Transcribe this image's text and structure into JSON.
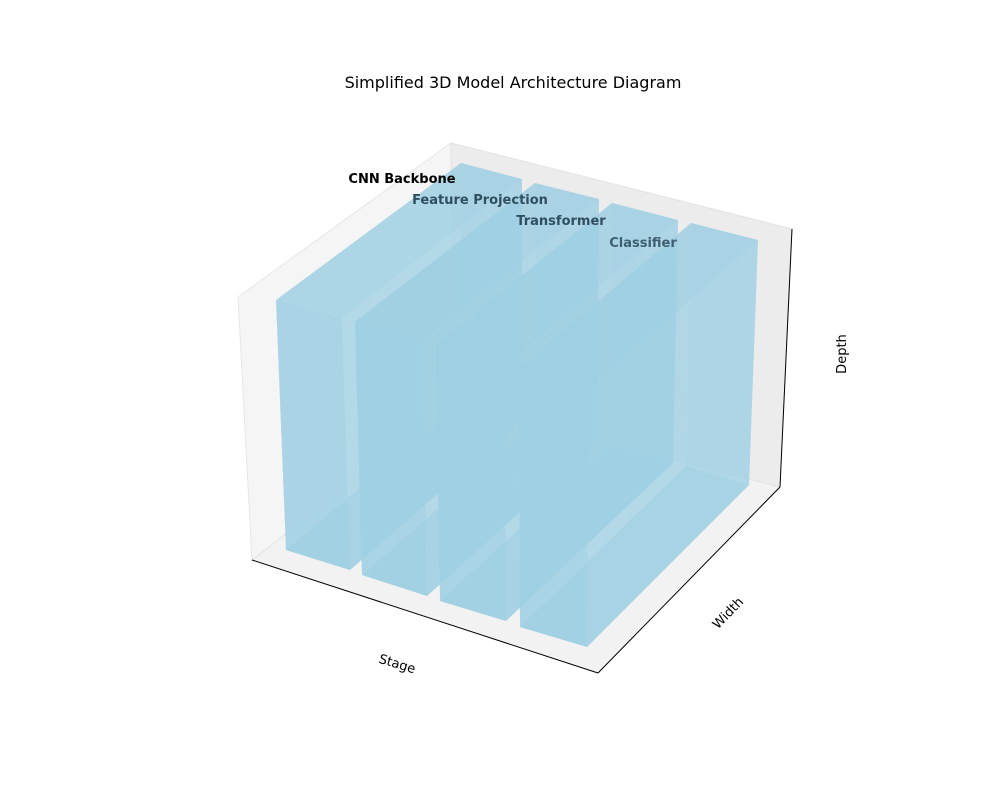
{
  "diagram": {
    "title": "Simplified 3D Model Architecture Diagram",
    "axes": {
      "x_label": "Stage",
      "y_label": "Width",
      "z_label": "Depth"
    },
    "block_color": "#9ecfe3",
    "blocks": [
      {
        "id": "cnn-backbone",
        "label": "CNN Backbone",
        "label_color": "#000000"
      },
      {
        "id": "feature-projection",
        "label": "Feature Projection",
        "label_color": "#2f4f5f"
      },
      {
        "id": "transformer",
        "label": "Transformer",
        "label_color": "#2f4f5f"
      },
      {
        "id": "classifier",
        "label": "Classifier",
        "label_color": "#3d5f70"
      }
    ]
  }
}
